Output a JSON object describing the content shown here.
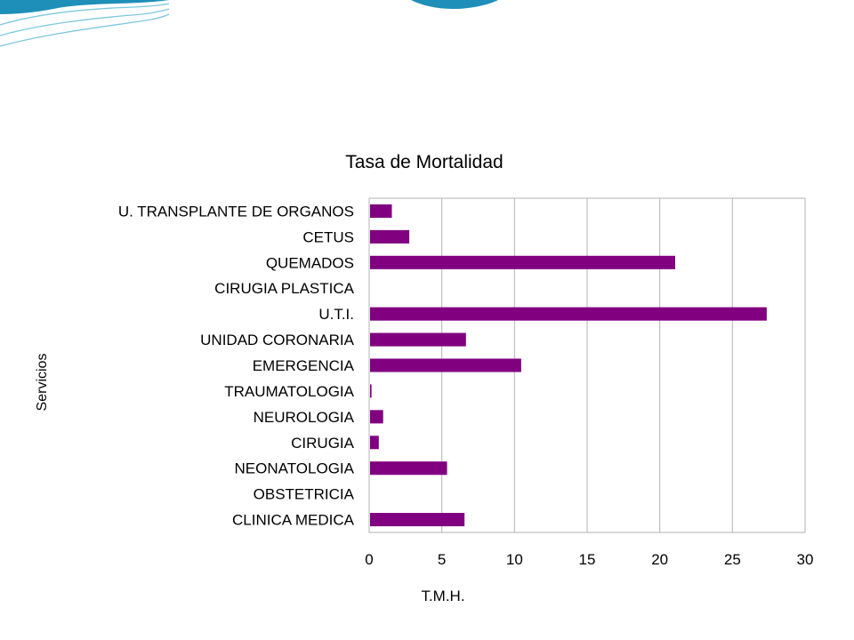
{
  "chart_data": {
    "type": "bar",
    "orientation": "horizontal",
    "title": "Tasa de Mortalidad",
    "xlabel": "T.M.H.",
    "ylabel": "Servicios",
    "categories": [
      "U. TRANSPLANTE DE ORGANOS",
      "CETUS",
      "QUEMADOS",
      "CIRUGIA PLASTICA",
      "U.T.I.",
      "UNIDAD CORONARIA",
      "EMERGENCIA",
      "TRAUMATOLOGIA",
      "NEUROLOGIA",
      "CIRUGIA",
      "NEONATOLOGIA",
      "OBSTETRICIA",
      "CLINICA MEDICA"
    ],
    "values": [
      1.5,
      2.7,
      21.0,
      0,
      27.3,
      6.6,
      10.4,
      0.1,
      0.9,
      0.6,
      5.3,
      0,
      6.5
    ],
    "xlim": [
      0,
      30
    ],
    "xticks": [
      0,
      5,
      10,
      15,
      20,
      25,
      30
    ],
    "grid": true,
    "bar_color": "#800080"
  },
  "theme": {
    "accent_dark": "#1e8fb8",
    "accent_light": "#7cc8de"
  }
}
